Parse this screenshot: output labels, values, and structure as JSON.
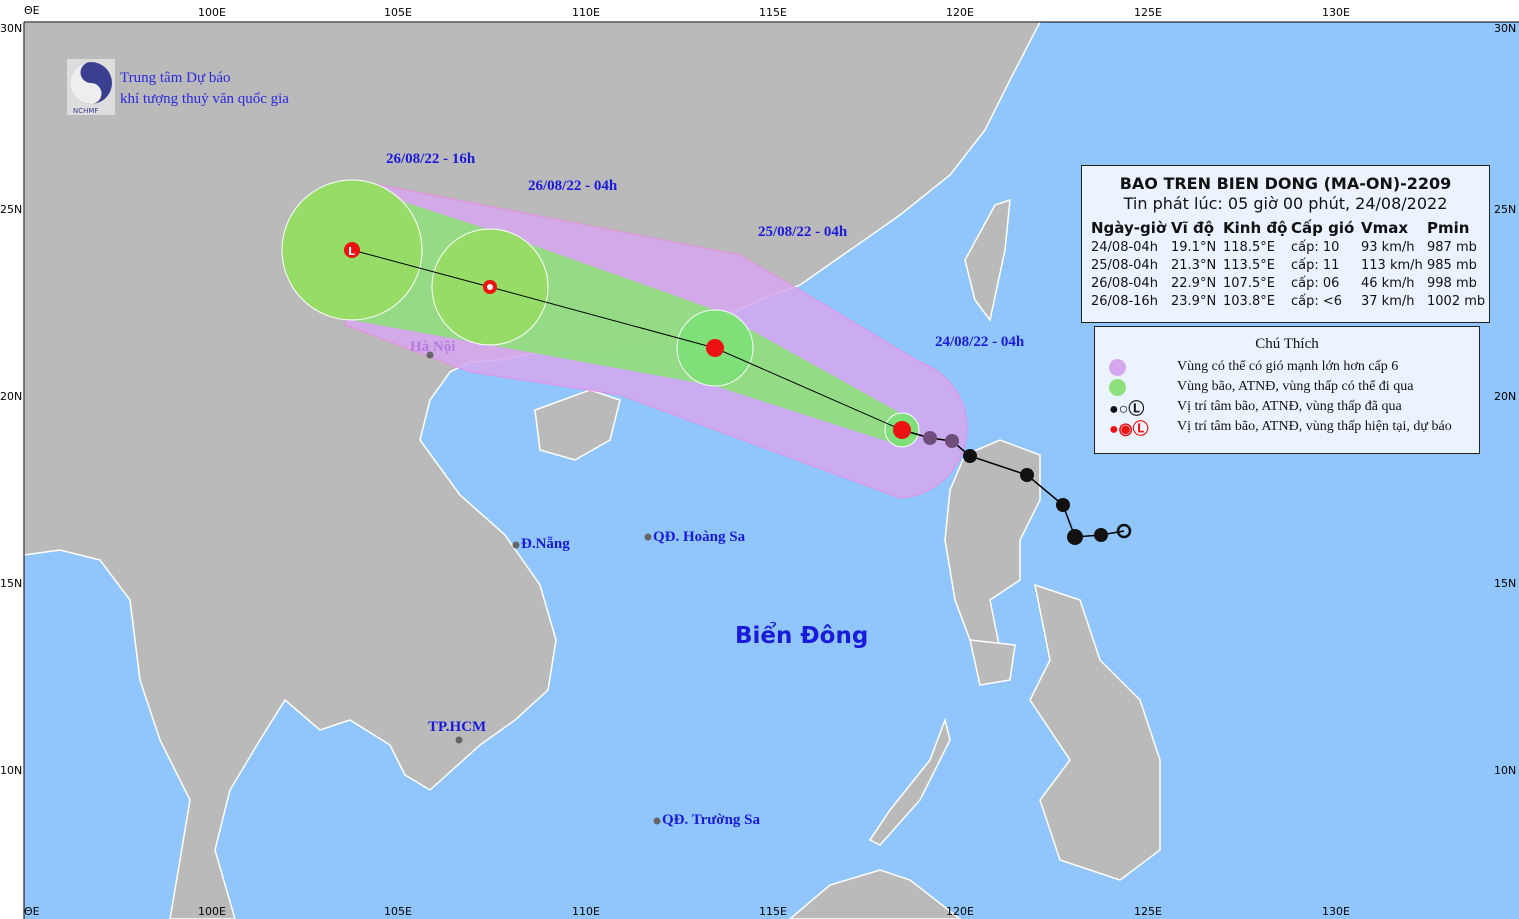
{
  "colors": {
    "sea": "#90c6fc",
    "land": "#bababa",
    "cone_purple": "#d6a8f0",
    "cone_green": "#8ee07a",
    "current": "#ee1111",
    "past": "#111111",
    "label": "#1a1adb"
  },
  "axes": {
    "top": [
      "ΘE",
      "100E",
      "105E",
      "110E",
      "115E",
      "120E",
      "125E",
      "130E"
    ],
    "bottom": [
      "ΘE",
      "100E",
      "105E",
      "110E",
      "115E",
      "120E",
      "125E",
      "130E"
    ],
    "left": [
      "30N",
      "25N",
      "20N",
      "15N",
      "10N"
    ],
    "right": [
      "30N",
      "25N",
      "20N",
      "15N",
      "10N"
    ]
  },
  "org": {
    "logo_text": "NCHMF",
    "line1": "Trung tâm Dự báo",
    "line2": "khí tượng thuỷ văn quốc gia"
  },
  "info": {
    "title": "BAO TREN BIEN DONG (MA-ON)-2209",
    "issued": "Tin phát lúc: 05 giờ 00 phút, 24/08/2022",
    "headers": [
      "Ngày-giờ",
      "Vĩ độ",
      "Kinh độ",
      "Cấp gió",
      "Vmax",
      "Pmin"
    ],
    "rows": [
      [
        "24/08-04h",
        "19.1°N",
        "118.5°E",
        "cấp: 10",
        "93 km/h",
        "987 mb"
      ],
      [
        "25/08-04h",
        "21.3°N",
        "113.5°E",
        "cấp: 11",
        "113 km/h",
        "985 mb"
      ],
      [
        "26/08-04h",
        "22.9°N",
        "107.5°E",
        "cấp: 06",
        "46 km/h",
        "998 mb"
      ],
      [
        "26/08-16h",
        "23.9°N",
        "103.8°E",
        "cấp: <6",
        "37 km/h",
        "1002 mb"
      ]
    ]
  },
  "legend": {
    "title": "Chú Thích",
    "items": [
      "Vùng có thể có gió mạnh lớn hơn cấp 6",
      "Vùng bão, ATNĐ, vùng thấp có thể đi qua",
      "Vị trí tâm bão, ATNĐ, vùng thấp đã qua",
      "Vị trí tâm bão, ATNĐ, vùng thấp hiện tại, dự báo"
    ]
  },
  "track_labels": [
    "26/08/22 - 16h",
    "26/08/22 - 04h",
    "25/08/22 - 04h",
    "24/08/22 - 04h"
  ],
  "places": {
    "hanoi": "Hà Nội",
    "danang": "Đ.Nẵng",
    "hoangsa": "QĐ. Hoàng Sa",
    "hcm": "TP.HCM",
    "truongsa": "QĐ. Trường Sa",
    "sea": "Biển Đông"
  },
  "forecast_points": [
    {
      "time": "24/08-04h",
      "lat": 19.1,
      "lon": 118.5,
      "icon": "storm-icon"
    },
    {
      "time": "25/08-04h",
      "lat": 21.3,
      "lon": 113.5,
      "icon": "storm-icon"
    },
    {
      "time": "26/08-04h",
      "lat": 22.9,
      "lon": 107.5,
      "icon": "tropical-depression-icon"
    },
    {
      "time": "26/08-16h",
      "lat": 23.9,
      "lon": 103.8,
      "icon": "low-pressure-icon"
    }
  ]
}
